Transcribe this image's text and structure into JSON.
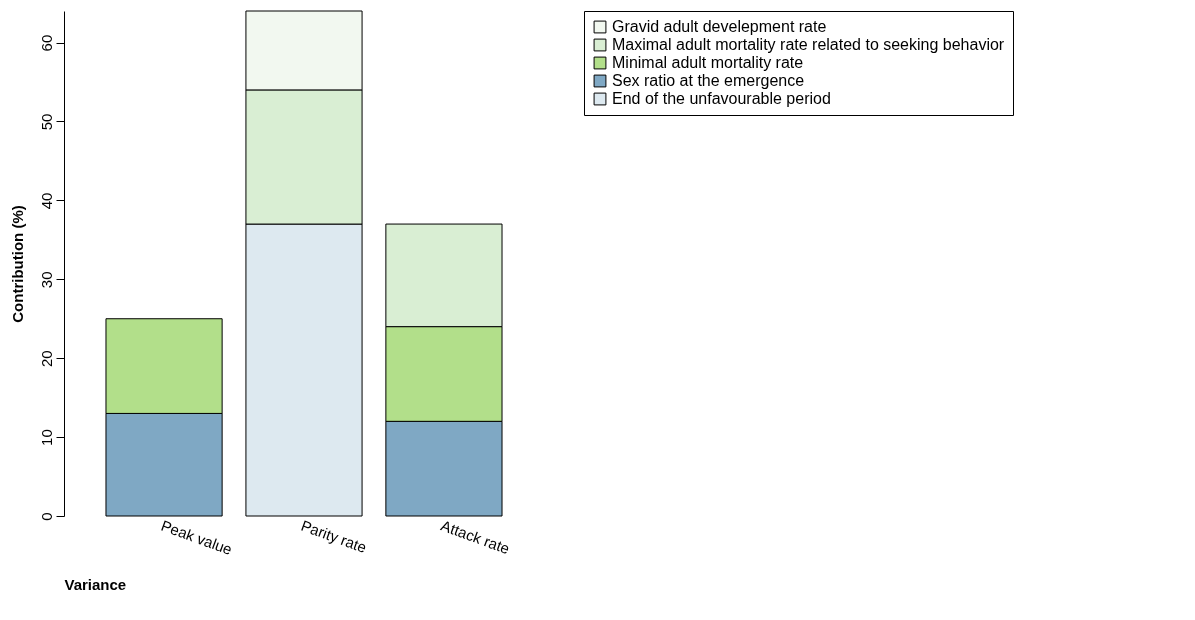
{
  "chart_data": {
    "type": "bar",
    "stacked": true,
    "xlabel": "Variance",
    "ylabel": "Contribution (%)",
    "categories": [
      "Peak value",
      "Parity rate",
      "Attack rate"
    ],
    "series": [
      {
        "name": "End of the unfavourable period",
        "color": "#dde9f0",
        "values": [
          null,
          37,
          null
        ]
      },
      {
        "name": "Sex ratio at the emergence",
        "color": "#7fa8c4",
        "values": [
          13,
          null,
          12
        ]
      },
      {
        "name": "Minimal adult mortality rate",
        "color": "#b2df8a",
        "values": [
          12,
          null,
          12
        ]
      },
      {
        "name": "Maximal adult mortality rate related to seeking behavior",
        "color": "#d9eed3",
        "values": [
          null,
          17,
          13
        ]
      },
      {
        "name": "Gravid adult develepment rate",
        "color": "#f2f8f0",
        "values": [
          null,
          10,
          null
        ]
      }
    ],
    "ylim": [
      0,
      64
    ],
    "yticks": [
      0,
      10,
      20,
      30,
      40,
      50,
      60
    ],
    "legend": "top right",
    "grid": false
  }
}
